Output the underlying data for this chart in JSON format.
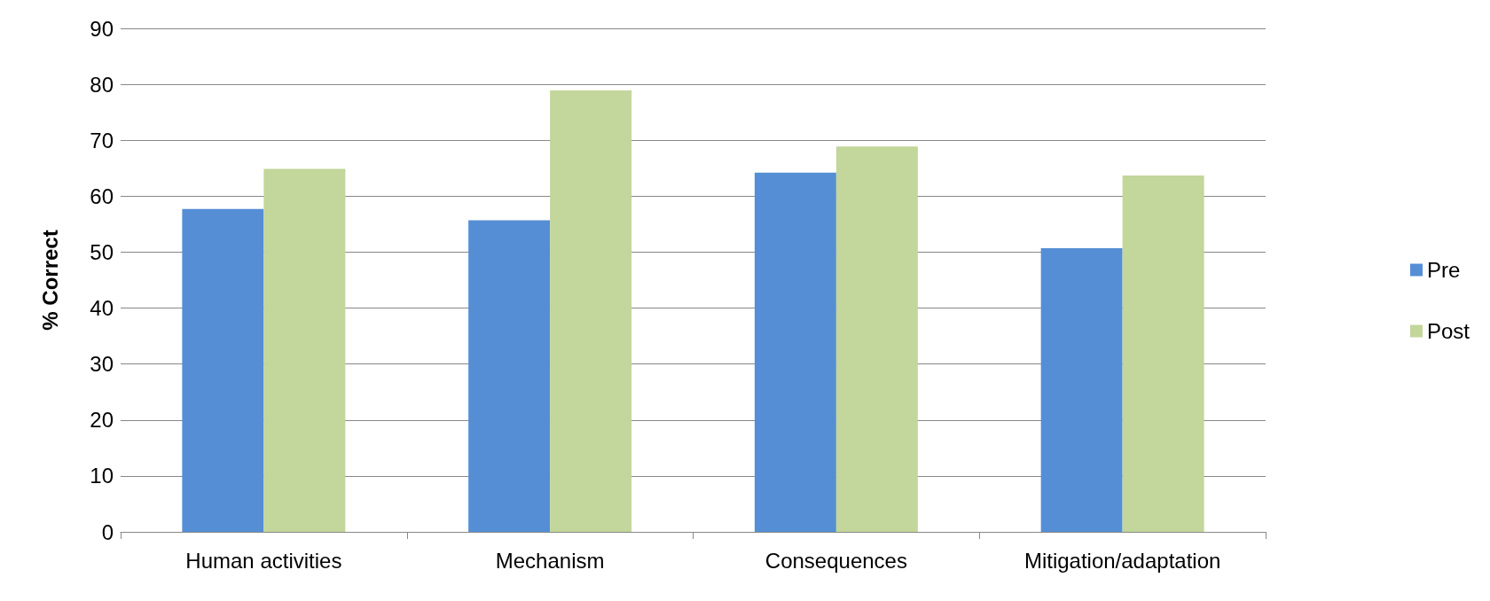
{
  "chart_data": {
    "type": "bar",
    "ylabel": "% Correct",
    "categories": [
      "Human activities",
      "Mechanism",
      "Consequences",
      "Mitigation/adaptation"
    ],
    "series": [
      {
        "name": "Pre",
        "color": "#558ed5",
        "values": [
          57.7,
          55.7,
          64.2,
          50.7
        ]
      },
      {
        "name": "Post",
        "color": "#c3d69b",
        "values": [
          64.9,
          78.9,
          68.9,
          63.7
        ]
      }
    ],
    "ylim": [
      0,
      90
    ],
    "yticks": [
      0,
      10,
      20,
      30,
      40,
      50,
      60,
      70,
      80,
      90
    ],
    "grid": "y",
    "legend": "right"
  }
}
